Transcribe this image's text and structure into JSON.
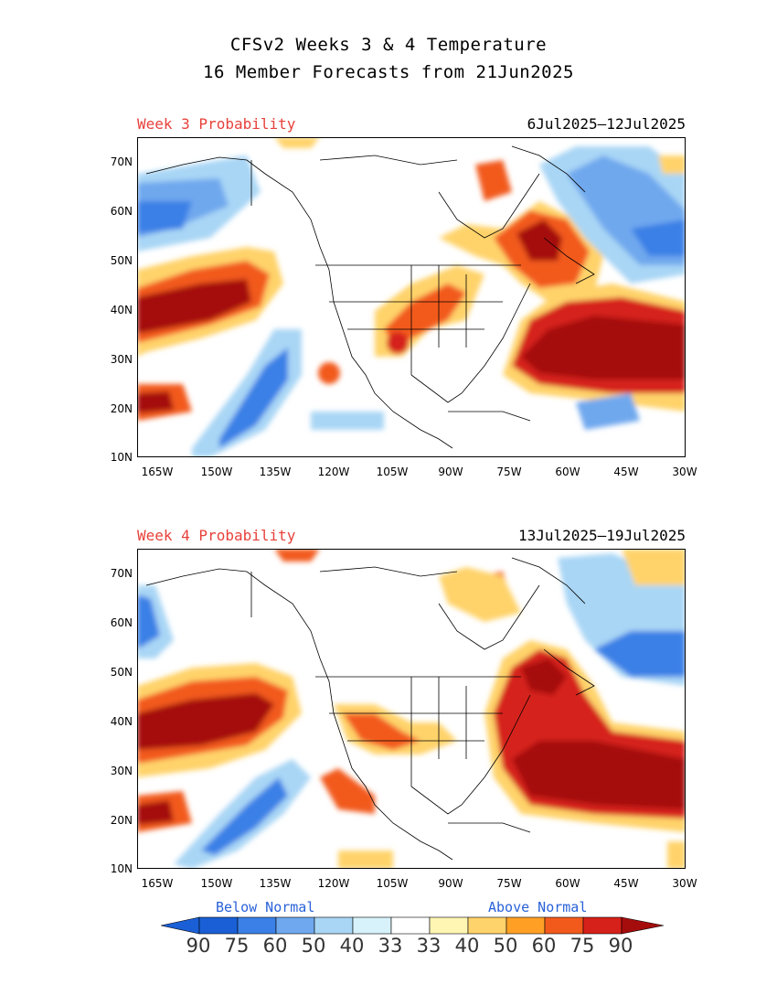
{
  "title": {
    "line1": "CFSv2 Weeks 3 & 4 Temperature",
    "line2": "16 Member Forecasts from 21Jun2025"
  },
  "panels": [
    {
      "label": "Week 3 Probability",
      "dates": "6Jul2025—12Jul2025"
    },
    {
      "label": "Week 4 Probability",
      "dates": "13Jul2025—19Jul2025"
    }
  ],
  "axes": {
    "lat_labels": [
      "70N",
      "60N",
      "50N",
      "40N",
      "30N",
      "20N",
      "10N"
    ],
    "lon_labels": [
      "165W",
      "150W",
      "135W",
      "120W",
      "105W",
      "90W",
      "75W",
      "60W",
      "45W",
      "30W"
    ]
  },
  "legend": {
    "below_label": "Below Normal",
    "above_label": "Above Normal",
    "numbers": [
      "90",
      "75",
      "60",
      "50",
      "40",
      "33",
      "33",
      "40",
      "50",
      "60",
      "75",
      "90"
    ],
    "below_colors": [
      "#1a5fd6",
      "#3a80e6",
      "#6fa8ee",
      "#a9d6f5",
      "#d7f2fb"
    ],
    "above_colors": [
      "#fff6b3",
      "#ffd36b",
      "#ffa024",
      "#f25a1c",
      "#d6201a",
      "#a50c0c"
    ],
    "white": "#ffffff"
  },
  "colors": {
    "panel_label": "#e8413a",
    "legend_label": "#2a62d8"
  }
}
